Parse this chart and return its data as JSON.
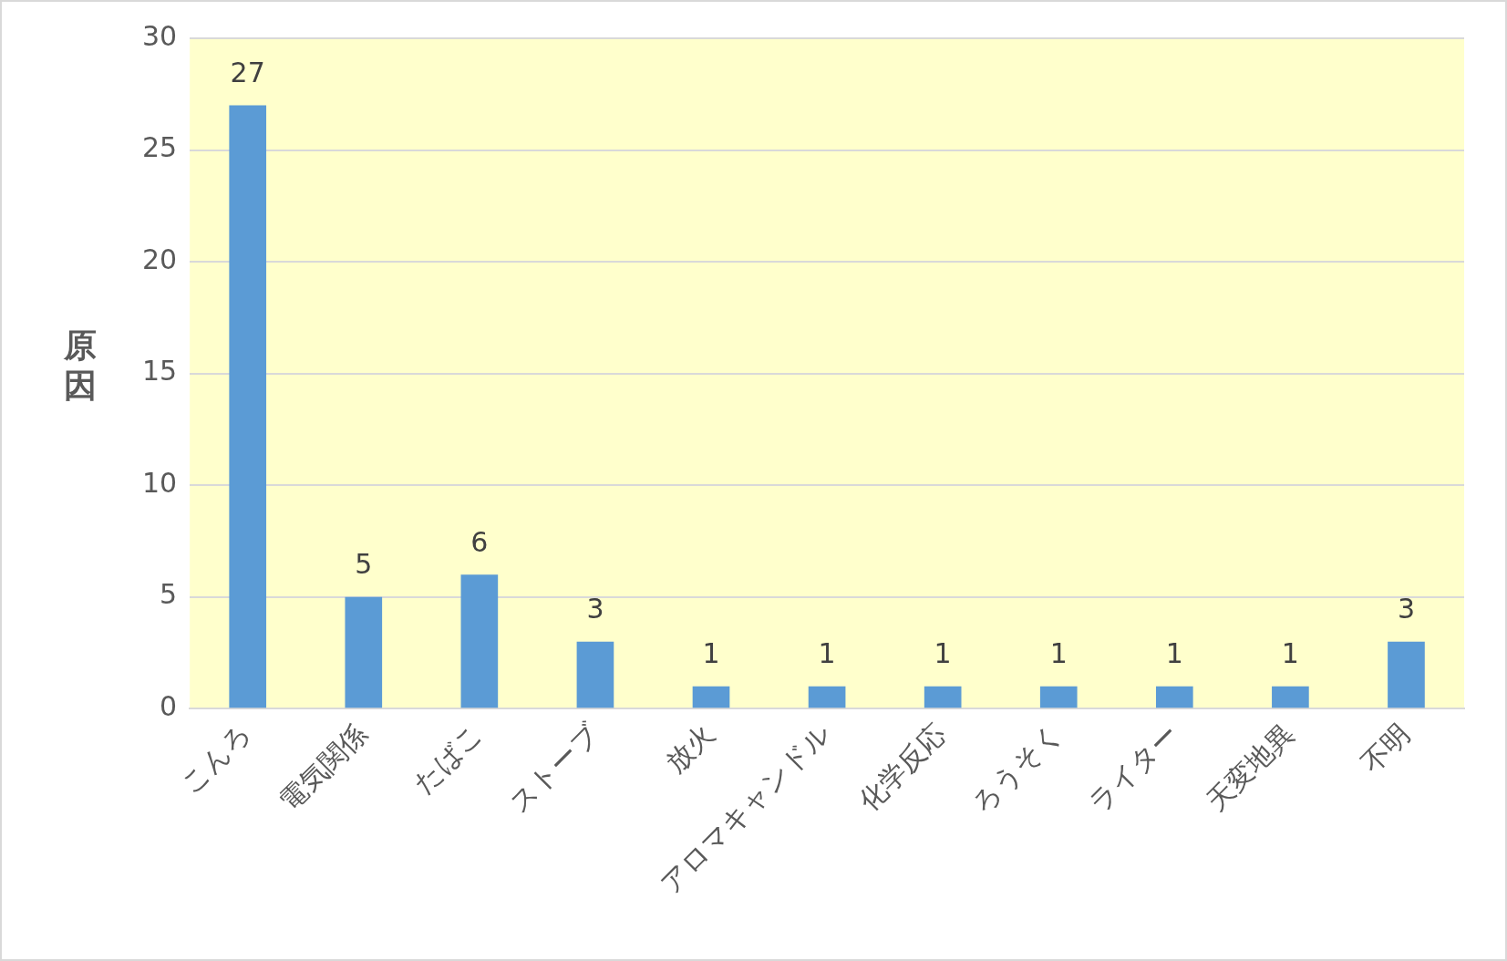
{
  "chart_data": {
    "type": "bar",
    "ylabel": "原因",
    "categories": [
      "こんろ",
      "電気関係",
      "たばこ",
      "ストーブ",
      "放火",
      "アロマキャンドル",
      "化学反応",
      "ろうそく",
      "ライター",
      "天変地異",
      "不明"
    ],
    "values": [
      27,
      5,
      6,
      3,
      1,
      1,
      1,
      1,
      1,
      1,
      3
    ],
    "color": "#5b9bd5",
    "ylim": [
      0,
      30
    ],
    "yticks": [
      0,
      5,
      10,
      15,
      20,
      25,
      30
    ],
    "grid": "y",
    "data_labels": true,
    "legend": false
  }
}
